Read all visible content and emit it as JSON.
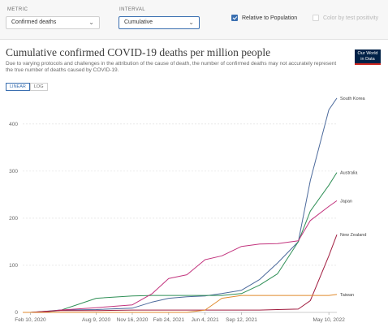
{
  "controls": {
    "metric": {
      "label": "METRIC",
      "value": "Confirmed deaths"
    },
    "interval": {
      "label": "INTERVAL",
      "value": "Cumulative"
    },
    "relative": {
      "label": "Relative to Population",
      "checked": true
    },
    "color_by": {
      "label": "Color by test positivity",
      "checked": false
    }
  },
  "chart": {
    "title": "Cumulative confirmed COVID-19 deaths per million people",
    "subtitle": "Due to varying protocols and challenges in the attribution of the cause of death, the number of confirmed deaths may not accurately represent the true number of deaths caused by COVID-19.",
    "logo_line1": "Our World",
    "logo_line2": "in Data",
    "scale_linear": "LINEAR",
    "scale_log": "LOG"
  },
  "chart_data": {
    "type": "line",
    "ylim": [
      0,
      460
    ],
    "y_ticks": [
      0,
      100,
      200,
      300,
      400
    ],
    "x_ticks": [
      "Feb 10, 2020",
      "Aug 9, 2020",
      "Nov 16, 2020",
      "Feb 24, 2021",
      "Jun 4, 2021",
      "Sep 12, 2021",
      "May 10, 2022"
    ],
    "x": [
      "2020-01-20",
      "2020-02-10",
      "2020-03-20",
      "2020-05-01",
      "2020-08-09",
      "2020-11-16",
      "2021-01-10",
      "2021-02-24",
      "2021-04-15",
      "2021-06-04",
      "2021-07-20",
      "2021-09-12",
      "2021-11-01",
      "2021-12-20",
      "2022-02-15",
      "2022-03-20",
      "2022-05-10",
      "2022-06-01"
    ],
    "series": [
      {
        "name": "South Korea",
        "color": "#4c6a9c",
        "values": [
          0,
          0,
          2,
          5,
          6,
          9,
          22,
          30,
          33,
          35,
          40,
          47,
          70,
          105,
          150,
          280,
          430,
          455
        ]
      },
      {
        "name": "Australia",
        "color": "#2f8f56",
        "values": [
          0,
          0,
          1,
          4,
          30,
          35,
          36,
          36,
          36,
          36,
          36,
          40,
          58,
          82,
          150,
          215,
          270,
          297
        ]
      },
      {
        "name": "Japan",
        "color": "#c2337d",
        "values": [
          0,
          0,
          1,
          5,
          10,
          16,
          40,
          72,
          80,
          112,
          120,
          140,
          145,
          146,
          152,
          195,
          225,
          237
        ]
      },
      {
        "name": "New Zealand",
        "color": "#a11e40",
        "values": [
          0,
          0,
          2,
          4,
          4,
          5,
          5,
          5,
          5,
          5,
          5,
          5,
          5,
          6,
          7,
          25,
          120,
          165
        ]
      },
      {
        "name": "Taiwan",
        "color": "#e08a2c",
        "values": [
          0,
          0,
          0,
          0,
          0,
          0,
          0,
          0,
          0,
          5,
          30,
          36,
          36,
          36,
          36,
          36,
          36,
          38
        ]
      }
    ]
  }
}
